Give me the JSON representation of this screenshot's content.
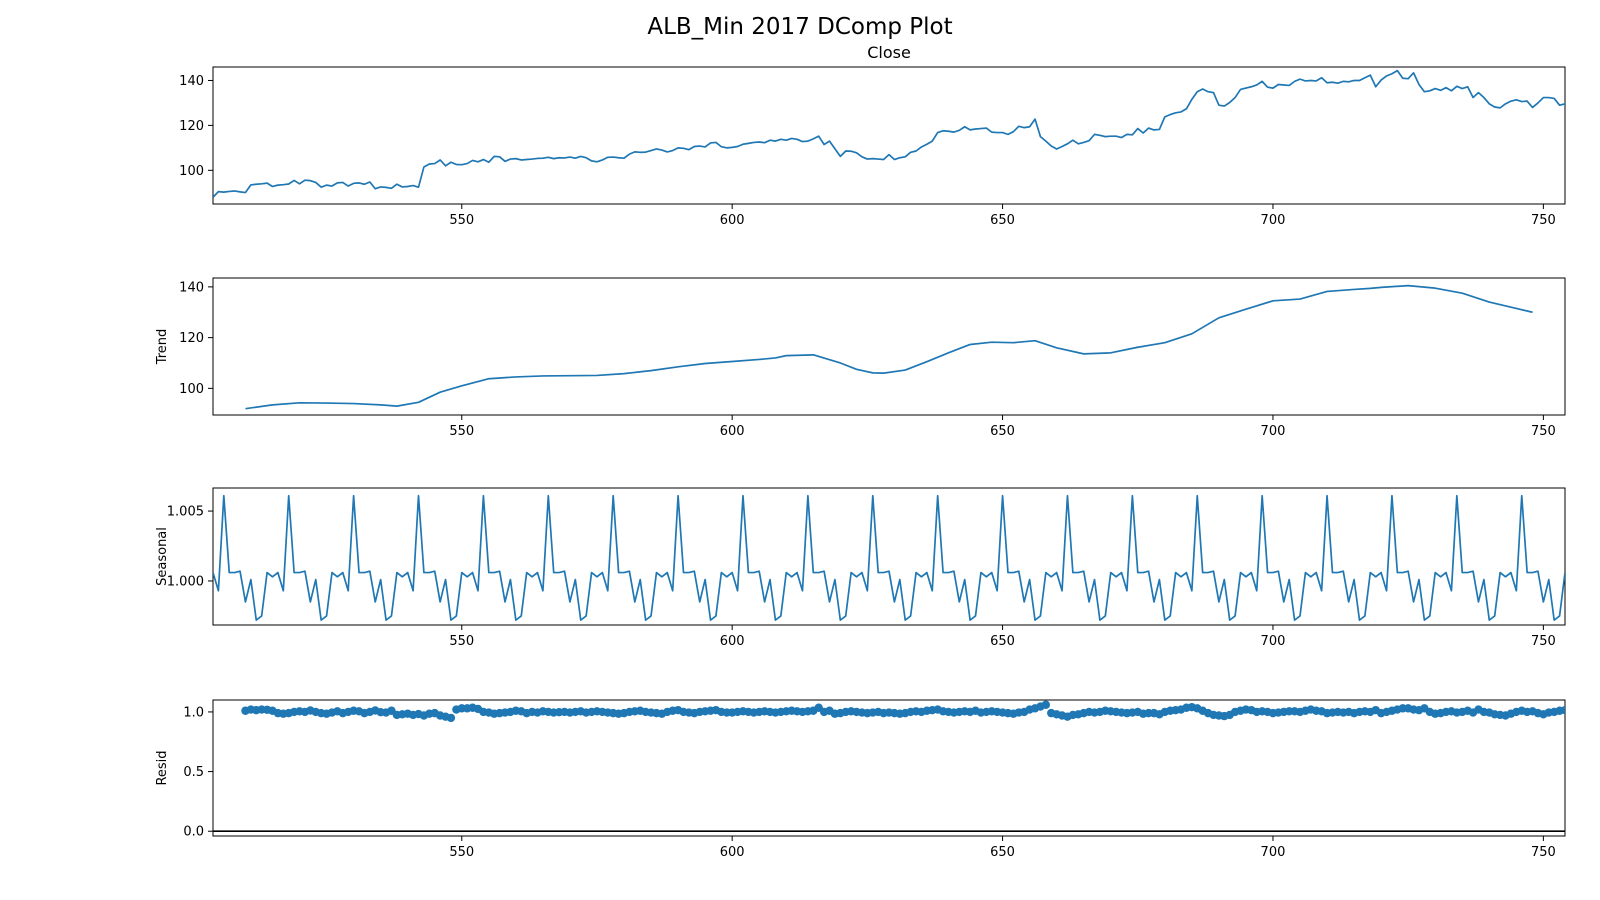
{
  "figure": {
    "title": "ALB_Min 2017 DComp Plot"
  },
  "chart_data": [
    {
      "type": "line",
      "title": "Close",
      "ylabel": "",
      "xlim": [
        504,
        754
      ],
      "ylim": [
        85,
        146
      ],
      "xticks": [
        550,
        600,
        650,
        700,
        750
      ],
      "yticks": [
        {
          "v": 100,
          "label": "100"
        },
        {
          "v": 120,
          "label": "120"
        },
        {
          "v": 140,
          "label": "140"
        }
      ],
      "series": [
        {
          "color": "#1f77b4",
          "x_start": 504,
          "values": [
            88.0,
            90.5,
            90.3,
            90.6,
            90.8,
            90.4,
            90.1,
            93.5,
            93.8,
            94.0,
            94.3,
            92.8,
            93.4,
            93.6,
            93.9,
            95.5,
            94.0,
            95.6,
            95.4,
            94.6,
            92.5,
            93.4,
            93.0,
            94.4,
            94.6,
            93.0,
            94.2,
            94.4,
            93.8,
            94.8,
            91.8,
            92.6,
            92.4,
            92.0,
            93.8,
            92.6,
            92.8,
            93.2,
            92.5,
            101.5,
            102.8,
            103.0,
            104.6,
            102.0,
            103.6,
            102.6,
            102.5,
            103.0,
            104.4,
            103.8,
            104.8,
            103.6,
            106.2,
            106.0,
            104.0,
            105.0,
            105.2,
            104.6,
            104.8,
            105.0,
            105.3,
            105.4,
            105.8,
            105.2,
            105.6,
            105.5,
            105.9,
            105.4,
            106.2,
            105.6,
            104.2,
            103.8,
            104.6,
            105.8,
            105.9,
            105.6,
            105.4,
            107.2,
            108.2,
            108.0,
            108.1,
            108.8,
            109.5,
            109.0,
            108.2,
            108.8,
            110.0,
            109.8,
            109.2,
            110.6,
            110.8,
            110.4,
            112.2,
            112.4,
            110.5,
            110.0,
            110.2,
            110.6,
            111.6,
            112.0,
            112.4,
            112.6,
            112.3,
            113.4,
            113.0,
            113.8,
            113.4,
            114.2,
            113.8,
            112.8,
            113.0,
            114.0,
            115.2,
            111.5,
            113.0,
            109.6,
            106.2,
            108.6,
            108.5,
            107.8,
            106.0,
            105.0,
            105.2,
            105.0,
            104.8,
            107.0,
            104.8,
            105.6,
            106.0,
            108.0,
            108.6,
            110.4,
            111.6,
            113.0,
            116.8,
            117.6,
            117.4,
            117.0,
            117.8,
            119.4,
            118.0,
            118.4,
            118.6,
            118.8,
            117.0,
            116.8,
            116.8,
            116.0,
            117.2,
            119.6,
            119.0,
            119.4,
            122.8,
            115.0,
            113.0,
            110.8,
            109.5,
            110.6,
            111.8,
            113.4,
            111.8,
            112.4,
            113.2,
            116.0,
            115.6,
            115.0,
            115.2,
            115.2,
            114.6,
            116.0,
            115.8,
            118.6,
            116.6,
            118.8,
            118.0,
            118.2,
            123.8,
            124.8,
            125.6,
            126.0,
            127.4,
            131.6,
            135.0,
            136.2,
            135.0,
            134.6,
            129.0,
            128.6,
            130.2,
            132.4,
            136.0,
            136.6,
            137.2,
            138.0,
            139.6,
            137.0,
            136.6,
            138.2,
            138.0,
            137.8,
            139.6,
            140.6,
            139.8,
            140.0,
            139.8,
            141.2,
            139.0,
            139.2,
            138.8,
            139.6,
            139.4,
            140.0,
            140.0,
            141.2,
            142.4,
            137.2,
            140.2,
            142.0,
            143.0,
            144.4,
            141.0,
            140.8,
            143.4,
            138.2,
            135.0,
            135.4,
            136.4,
            135.6,
            136.8,
            135.4,
            137.4,
            136.4,
            137.2,
            132.4,
            134.6,
            132.4,
            129.6,
            128.2,
            127.8,
            129.6,
            130.8,
            131.4,
            130.6,
            130.8,
            128.0,
            130.0,
            132.4,
            132.4,
            132.0,
            129.0,
            129.6,
            129.4,
            128.6,
            128.6,
            128.2,
            128.0
          ]
        }
      ]
    },
    {
      "type": "line",
      "title": "",
      "ylabel": "Trend",
      "xlim": [
        504,
        754
      ],
      "ylim": [
        89.5,
        143.5
      ],
      "xticks": [
        550,
        600,
        650,
        700,
        750
      ],
      "yticks": [
        {
          "v": 100,
          "label": "100"
        },
        {
          "v": 120,
          "label": "120"
        },
        {
          "v": 140,
          "label": "140"
        }
      ],
      "series": [
        {
          "color": "#1f77b4",
          "x": [
            510,
            515,
            520,
            525,
            530,
            535,
            538,
            542,
            546,
            550,
            555,
            560,
            565,
            570,
            575,
            580,
            585,
            590,
            595,
            600,
            605,
            608,
            610,
            615,
            620,
            623,
            626,
            628,
            632,
            636,
            640,
            644,
            648,
            652,
            656,
            660,
            665,
            670,
            675,
            680,
            685,
            690,
            695,
            700,
            705,
            710,
            715,
            718,
            720,
            725,
            730,
            735,
            740,
            745,
            748
          ],
          "y": [
            92.0,
            93.5,
            94.3,
            94.2,
            94.0,
            93.5,
            93.0,
            94.5,
            98.5,
            101.0,
            103.8,
            104.5,
            104.9,
            105.0,
            105.1,
            105.8,
            107.0,
            108.5,
            109.8,
            110.6,
            111.4,
            112.0,
            112.9,
            113.2,
            110.0,
            107.5,
            106.1,
            106.0,
            107.2,
            110.5,
            114.0,
            117.3,
            118.2,
            118.0,
            118.8,
            116.0,
            113.6,
            114.0,
            116.2,
            118.0,
            121.5,
            127.8,
            131.2,
            134.5,
            135.2,
            138.2,
            139.0,
            139.4,
            139.8,
            140.5,
            139.5,
            137.5,
            134.0,
            131.5,
            130.0
          ]
        }
      ]
    },
    {
      "type": "line",
      "title": "",
      "ylabel": "Seasonal",
      "xlim": [
        504,
        754
      ],
      "ylim": [
        0.99685,
        1.00665
      ],
      "xticks": [
        550,
        600,
        650,
        700,
        750
      ],
      "yticks": [
        {
          "v": 1.0,
          "label": "1.000"
        },
        {
          "v": 1.005,
          "label": "1.005"
        }
      ],
      "series": [
        {
          "color": "#1f77b4",
          "x_start": 504,
          "period": 12,
          "seasonal_values": [
            1.0006,
            0.9993,
            1.0061,
            1.0006,
            1.0006,
            1.0007,
            0.9985,
            1.0001,
            0.9972,
            0.9975,
            1.0006,
            1.0003
          ],
          "values": []
        }
      ]
    },
    {
      "type": "scatter",
      "title": "",
      "ylabel": "Resid",
      "xlim": [
        504,
        754
      ],
      "ylim": [
        -0.04,
        1.1
      ],
      "xticks": [
        550,
        600,
        650,
        700,
        750
      ],
      "yticks": [
        {
          "v": 0.0,
          "label": "0.0"
        },
        {
          "v": 0.5,
          "label": "0.5"
        },
        {
          "v": 1.0,
          "label": "1.0"
        }
      ],
      "hline": 0.0,
      "series": [
        {
          "color": "#1f77b4",
          "x_start": 510,
          "values": [
            1.01,
            1.02,
            1.015,
            1.02,
            1.018,
            1.01,
            0.99,
            0.985,
            0.99,
            1.0,
            1.005,
            1.0,
            1.012,
            1.0,
            0.99,
            0.985,
            0.995,
            1.005,
            0.99,
            1.0,
            1.01,
            1.005,
            0.99,
            1.0,
            1.012,
            0.998,
            0.995,
            1.01,
            0.975,
            0.98,
            0.985,
            0.975,
            0.982,
            0.97,
            0.985,
            0.99,
            0.97,
            0.96,
            0.95,
            1.02,
            1.03,
            1.03,
            1.035,
            1.025,
            1.0,
            0.995,
            0.985,
            0.99,
            0.995,
            1.0,
            1.01,
            1.005,
            0.99,
            1.0,
            0.995,
            1.005,
            1.0,
            0.995,
            0.998,
            1.0,
            0.995,
            1.0,
            1.005,
            0.995,
            1.0,
            1.005,
            1.0,
            0.995,
            0.99,
            0.985,
            0.99,
            1.0,
            1.005,
            1.01,
            1.0,
            0.995,
            0.99,
            0.985,
            1.0,
            1.01,
            1.015,
            1.0,
            0.995,
            0.99,
            1.0,
            1.005,
            1.01,
            1.015,
            1.0,
            0.995,
            0.995,
            1.0,
            1.005,
            1.0,
            0.995,
            1.0,
            1.005,
            1.0,
            0.995,
            1.0,
            1.005,
            1.01,
            1.005,
            1.0,
            1.005,
            1.01,
            1.035,
            1.0,
            1.01,
            0.985,
            0.99,
            1.0,
            1.005,
            1.0,
            0.995,
            0.99,
            0.995,
            1.0,
            0.99,
            0.995,
            0.99,
            0.985,
            0.99,
            1.0,
            1.005,
            1.0,
            1.01,
            1.015,
            1.02,
            1.005,
            1.0,
            0.995,
            1.0,
            1.005,
            1.0,
            1.01,
            0.995,
            1.0,
            1.005,
            1.0,
            0.995,
            0.99,
            0.985,
            0.995,
            1.0,
            1.02,
            1.03,
            1.045,
            1.06,
            0.99,
            0.98,
            0.97,
            0.96,
            0.975,
            0.98,
            0.99,
            1.0,
            0.995,
            1.0,
            1.01,
            1.005,
            1.0,
            0.995,
            0.99,
            0.995,
            1.0,
            0.985,
            0.99,
            0.99,
            0.98,
            1.0,
            1.01,
            1.015,
            1.02,
            1.035,
            1.04,
            1.03,
            1.01,
            0.99,
            0.975,
            0.97,
            0.965,
            0.975,
            1.0,
            1.01,
            1.02,
            1.015,
            1.0,
            1.005,
            1.0,
            0.99,
            0.995,
            1.0,
            1.005,
            1.005,
            1.0,
            1.01,
            1.02,
            1.01,
            1.005,
            0.99,
            0.995,
            1.0,
            0.995,
            1.0,
            0.99,
            1.0,
            1.005,
            1.0,
            1.015,
            0.99,
            1.0,
            1.01,
            1.02,
            1.03,
            1.03,
            1.02,
            1.015,
            1.03,
            1.0,
            0.985,
            0.99,
            1.0,
            1.005,
            0.995,
            1.0,
            1.01,
            0.995,
            1.02,
            1.0,
            0.995,
            0.98,
            0.975,
            0.97,
            0.985,
            1.0,
            1.01,
            1.0,
            1.005,
            0.99,
            0.98,
            0.995,
            1.0,
            1.01,
            1.015,
            1.005,
            1.0
          ]
        }
      ]
    }
  ]
}
